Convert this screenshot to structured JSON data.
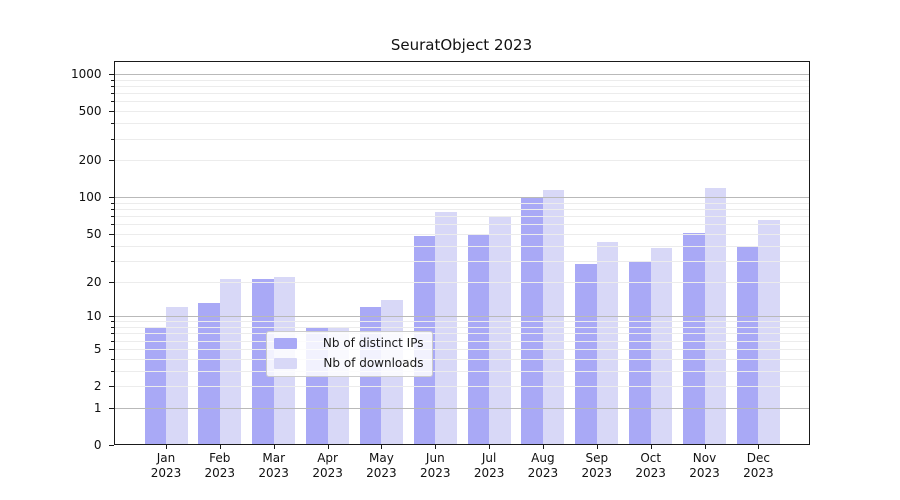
{
  "page": {
    "background": "#ffffff"
  },
  "chart_data": {
    "type": "bar",
    "title": "SeuratObject 2023",
    "categories": [
      "Jan",
      "Feb",
      "Mar",
      "Apr",
      "May",
      "Jun",
      "Jul",
      "Aug",
      "Sep",
      "Oct",
      "Nov",
      "Dec"
    ],
    "x_tick_year": "2023",
    "series": [
      {
        "name": "Nb of distinct IPs",
        "color": "#a9a9f6",
        "values": [
          8,
          13,
          21,
          8,
          12,
          48,
          49,
          100,
          28,
          29,
          51,
          40
        ]
      },
      {
        "name": "Nb of downloads",
        "color": "#d8d8f7",
        "values": [
          12,
          21,
          22,
          8,
          14,
          75,
          70,
          114,
          43,
          38,
          120,
          65
        ]
      }
    ],
    "yscale": "log10(1+v)",
    "ylim": [
      0,
      1300
    ],
    "y_tick_labels": [
      1000,
      500,
      200,
      100,
      50,
      20,
      10,
      5,
      2,
      1,
      0
    ],
    "y_major_gridlines": [
      1,
      10,
      100,
      1000
    ],
    "y_minor_gridline_pattern": "2-9 per decade",
    "grid": true,
    "legend_position": "lower-center",
    "xlabel": "",
    "ylabel": ""
  },
  "colors": {
    "major_grid": "#b9b9b9",
    "minor_grid": "#ececec",
    "spine": "#1a1a1a",
    "text": "#111111",
    "legend_border": "#cccccc"
  }
}
